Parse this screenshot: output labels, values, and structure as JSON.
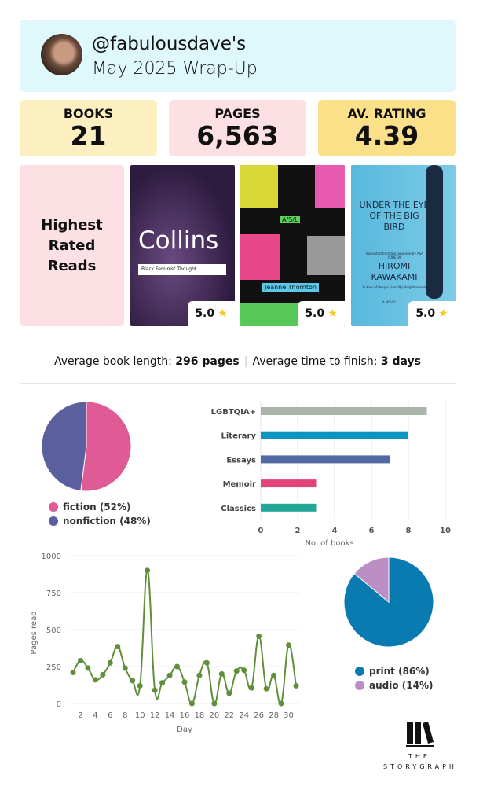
{
  "header": {
    "handle": "@fabulousdave's",
    "subtitle": "May 2025 Wrap-Up"
  },
  "stats": [
    {
      "label": "BOOKS",
      "value": "21",
      "color": "#fdf0c0"
    },
    {
      "label": "PAGES",
      "value": "6,563",
      "color": "#fde0e3"
    },
    {
      "label": "AV. RATING",
      "value": "4.39",
      "color": "#fbe08a"
    }
  ],
  "highest_rated": {
    "label": "Highest Rated Reads",
    "books": [
      {
        "cover_text": [
          "Collins",
          "Black Feminist Thought"
        ],
        "rating": "5.0"
      },
      {
        "cover_text": [
          "A/S/L",
          "Jeanne Thornton"
        ],
        "rating": "5.0"
      },
      {
        "cover_text": [
          "UNDER THE EYE OF THE BIG BIRD",
          "Translated from the Japanese by ASA YONEDA",
          "HIROMI KAWAKAMI",
          "Author of People From My Neighborhood",
          "A NOVEL"
        ],
        "rating": "5.0"
      }
    ]
  },
  "averages": {
    "length_label": "Average book length:",
    "length_value": "296 pages",
    "time_label": "Average time to finish:",
    "time_value": "3 days"
  },
  "brand": {
    "line1": "THE",
    "line2": "STORYGRAPH"
  },
  "chart_data": [
    {
      "type": "pie",
      "slices": [
        {
          "name": "fiction (52%)",
          "value": 52,
          "color": "#e05a96"
        },
        {
          "name": "nonfiction (48%)",
          "value": 48,
          "color": "#5a5f9e"
        }
      ]
    },
    {
      "type": "bar",
      "orientation": "horizontal",
      "categories": [
        "LGBTQIA+",
        "Literary",
        "Essays",
        "Memoir",
        "Classics"
      ],
      "values": [
        9,
        8,
        7,
        3,
        3
      ],
      "colors": [
        "#a9b5a8",
        "#0a95c3",
        "#5169a0",
        "#e0457a",
        "#22a796"
      ],
      "xlabel": "No. of books",
      "xlim": [
        0,
        10
      ],
      "xticks": [
        0,
        2,
        4,
        6,
        8,
        10
      ],
      "grid": true
    },
    {
      "type": "line",
      "xlabel": "Day",
      "ylabel": "Pages read",
      "color": "#5f8f3a",
      "x": [
        1,
        2,
        3,
        4,
        5,
        6,
        7,
        8,
        9,
        10,
        11,
        12,
        13,
        14,
        15,
        16,
        17,
        18,
        19,
        20,
        21,
        22,
        23,
        24,
        25,
        26,
        27,
        28,
        29,
        30,
        31
      ],
      "y": [
        210,
        290,
        240,
        160,
        195,
        275,
        385,
        240,
        155,
        120,
        900,
        90,
        140,
        190,
        250,
        145,
        0,
        190,
        275,
        0,
        200,
        70,
        220,
        225,
        105,
        455,
        100,
        190,
        0,
        395,
        120
      ],
      "ylim": [
        0,
        1000
      ],
      "yticks": [
        0,
        250,
        500,
        750,
        1000
      ],
      "xticks": [
        2,
        4,
        6,
        8,
        10,
        12,
        14,
        16,
        18,
        20,
        22,
        24,
        26,
        28,
        30
      ],
      "grid": true
    },
    {
      "type": "pie",
      "slices": [
        {
          "name": "print (86%)",
          "value": 86,
          "color": "#0a7bb0"
        },
        {
          "name": "audio (14%)",
          "value": 14,
          "color": "#bb8ec4"
        }
      ]
    }
  ]
}
